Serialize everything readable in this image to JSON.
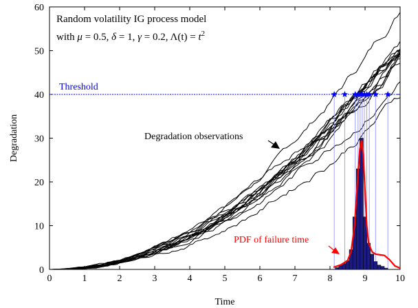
{
  "chart_data": {
    "type": "line",
    "xlabel": "Time",
    "ylabel": "Degradation",
    "xlim": [
      0,
      10
    ],
    "ylim": [
      0,
      60
    ],
    "xticks": [
      "0",
      "1",
      "2",
      "3",
      "4",
      "5",
      "6",
      "7",
      "8",
      "9",
      "10"
    ],
    "yticks": [
      "0",
      "10",
      "20",
      "30",
      "40",
      "50",
      "60"
    ],
    "grid": false,
    "model_text": {
      "line1": "Random volatility  IG process model",
      "line2_prefix": "with ",
      "mu_sym": "μ",
      "mu_val": " = 0.5, ",
      "delta_sym": "δ",
      "delta_val": " = 1, ",
      "gamma_sym": "γ",
      "gamma_val": " = 0.2, ",
      "lambda_sym": "Λ",
      "lambda_arg": "(t)",
      "eq": " = ",
      "t_sym": "t",
      "exponent": "2"
    },
    "threshold": {
      "label": "Threshold",
      "value": 40,
      "color": "#0000ff"
    },
    "observations_label": "Degradation observations",
    "pdf_label": "PDF of failure time",
    "colors": {
      "paths": "#000000",
      "threshold": "#0000ff",
      "pdf": "#ff0000",
      "histogram": "#1a1a80"
    },
    "path_end_values": [
      59.8,
      53.5,
      52.5,
      51.5,
      51.0,
      50.5,
      50.2,
      50.0,
      49.6,
      49.3,
      49.0,
      48.5,
      48.0,
      45.2,
      41.0
    ],
    "failure_times": [
      8.12,
      8.42,
      8.72,
      8.8,
      8.86,
      8.92,
      8.98,
      9.05,
      9.12,
      9.3,
      9.65
    ],
    "histogram": {
      "bin_width": 0.1,
      "bins": [
        {
          "x": 8.2,
          "y": 0.4
        },
        {
          "x": 8.3,
          "y": 0.9
        },
        {
          "x": 8.4,
          "y": 1.3
        },
        {
          "x": 8.5,
          "y": 2.0
        },
        {
          "x": 8.6,
          "y": 4.5
        },
        {
          "x": 8.7,
          "y": 12.0
        },
        {
          "x": 8.8,
          "y": 23.0
        },
        {
          "x": 8.9,
          "y": 30.0
        },
        {
          "x": 9.0,
          "y": 12.0
        },
        {
          "x": 9.1,
          "y": 6.0
        },
        {
          "x": 9.2,
          "y": 3.5
        },
        {
          "x": 9.3,
          "y": 1.8
        },
        {
          "x": 9.4,
          "y": 1.0
        },
        {
          "x": 9.5,
          "y": 0.7
        },
        {
          "x": 9.6,
          "y": 0.3
        }
      ]
    },
    "pdf_curve": [
      {
        "x": 8.1,
        "y": 0.5
      },
      {
        "x": 8.3,
        "y": 1.0
      },
      {
        "x": 8.5,
        "y": 2.0
      },
      {
        "x": 8.6,
        "y": 4.0
      },
      {
        "x": 8.7,
        "y": 10.0
      },
      {
        "x": 8.8,
        "y": 22.0
      },
      {
        "x": 8.85,
        "y": 27.5
      },
      {
        "x": 8.9,
        "y": 29.5
      },
      {
        "x": 8.95,
        "y": 26.0
      },
      {
        "x": 9.0,
        "y": 18.0
      },
      {
        "x": 9.05,
        "y": 10.0
      },
      {
        "x": 9.1,
        "y": 6.0
      },
      {
        "x": 9.2,
        "y": 4.0
      },
      {
        "x": 9.3,
        "y": 3.5
      },
      {
        "x": 9.45,
        "y": 3.3
      },
      {
        "x": 9.55,
        "y": 3.2
      },
      {
        "x": 9.7,
        "y": 2.2
      },
      {
        "x": 9.85,
        "y": 0.8
      },
      {
        "x": 10.0,
        "y": 0.3
      }
    ]
  }
}
